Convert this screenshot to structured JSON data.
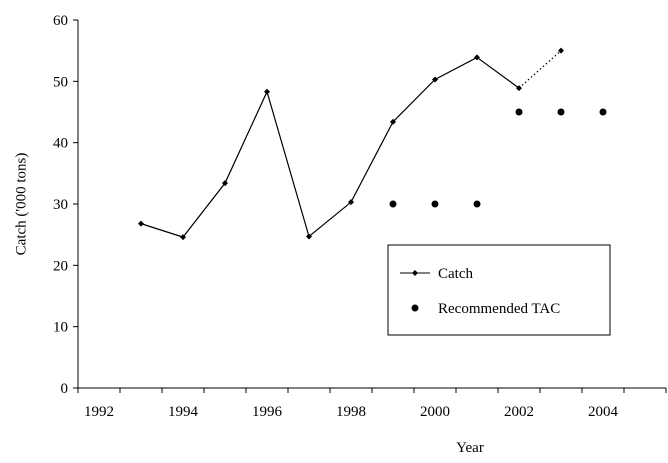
{
  "chart_data": {
    "type": "line",
    "x_label": "Year",
    "y_label": "Catch ('000 tons)",
    "categories": [
      "1992",
      null,
      "1994",
      null,
      "1996",
      null,
      "1998",
      null,
      "2000",
      null,
      "2002",
      null,
      "2004",
      null
    ],
    "series": [
      {
        "name": "Catch",
        "color": "#000000",
        "marker": "diamond",
        "last_segment": "dotted",
        "values": [
          null,
          26.8,
          24.6,
          33.4,
          48.3,
          24.7,
          30.3,
          43.4,
          50.3,
          53.9,
          48.9,
          55,
          null,
          null
        ]
      },
      {
        "name": "Recommended TAC",
        "color": "#000000",
        "marker": "circle",
        "line": false,
        "values": [
          null,
          null,
          null,
          null,
          null,
          null,
          null,
          30,
          30,
          30,
          45,
          45,
          45,
          null
        ]
      }
    ],
    "ylim": [
      0,
      60
    ],
    "yticks": [
      0,
      10,
      20,
      30,
      40,
      50,
      60
    ],
    "grid": false,
    "legend": "lower right"
  }
}
